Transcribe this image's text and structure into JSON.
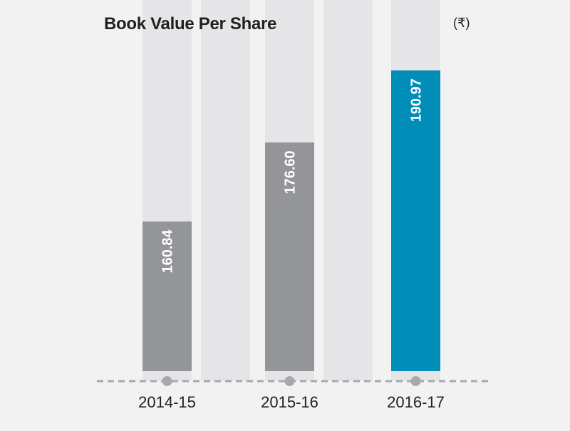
{
  "chart_data": {
    "type": "bar",
    "title": "Book Value Per Share",
    "unit": "(₹)",
    "categories": [
      "2014-15",
      "2015-16",
      "2016-17"
    ],
    "values": [
      160.84,
      176.6,
      190.97
    ],
    "value_labels": [
      "160.84",
      "176.60",
      "190.97"
    ],
    "ylim": [
      131,
      205
    ],
    "grid": false,
    "legend": "none",
    "colors": {
      "bar": "#939598",
      "highlight": "#008db8",
      "track": "#e5e5e7",
      "axis": "#a7a9ac",
      "label": "#ffffff",
      "text": "#231f20",
      "background": "#f2f2f2"
    }
  }
}
